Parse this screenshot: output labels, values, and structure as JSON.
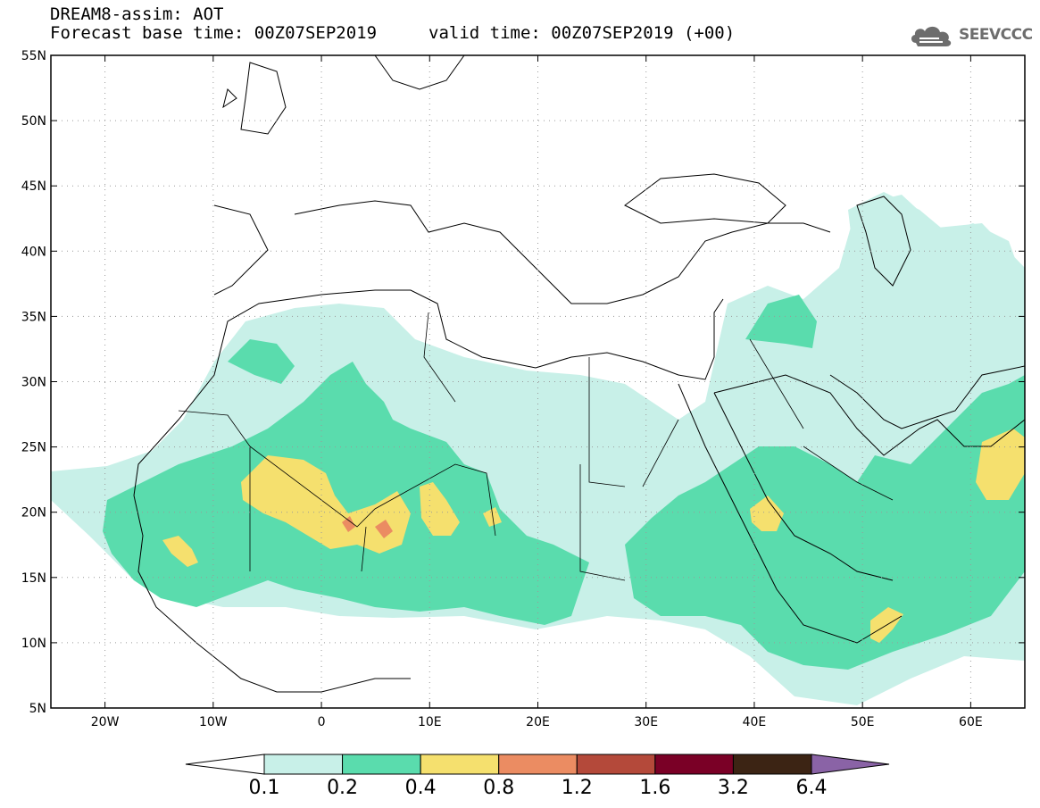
{
  "header": {
    "title_line1": "DREAM8-assim: AOT",
    "title_line2_left": "Forecast base time: 00Z07SEP2019",
    "title_line2_right": "valid time: 00Z07SEP2019 (+00)"
  },
  "logo": {
    "icon": "cloud-icon",
    "text": "SEEVCCC"
  },
  "map": {
    "lat_labels": [
      "55N",
      "50N",
      "45N",
      "40N",
      "35N",
      "30N",
      "25N",
      "20N",
      "15N",
      "10N",
      "5N"
    ],
    "lon_labels": [
      "20W",
      "10W",
      "0",
      "10E",
      "20E",
      "30E",
      "40E",
      "50E",
      "60E"
    ],
    "extent": {
      "lon": [
        -25,
        65
      ],
      "lat": [
        5,
        55
      ]
    },
    "grid": "dotted"
  },
  "colorbar": {
    "labels": [
      "0.1",
      "0.2",
      "0.4",
      "0.8",
      "1.2",
      "1.6",
      "3.2",
      "6.4"
    ],
    "colors": [
      "#ffffff",
      "#c8f0e8",
      "#5adcad",
      "#f5e06e",
      "#eb8c62",
      "#b4493a",
      "#7a0026",
      "#3c2414",
      "#8a63a6"
    ]
  }
}
